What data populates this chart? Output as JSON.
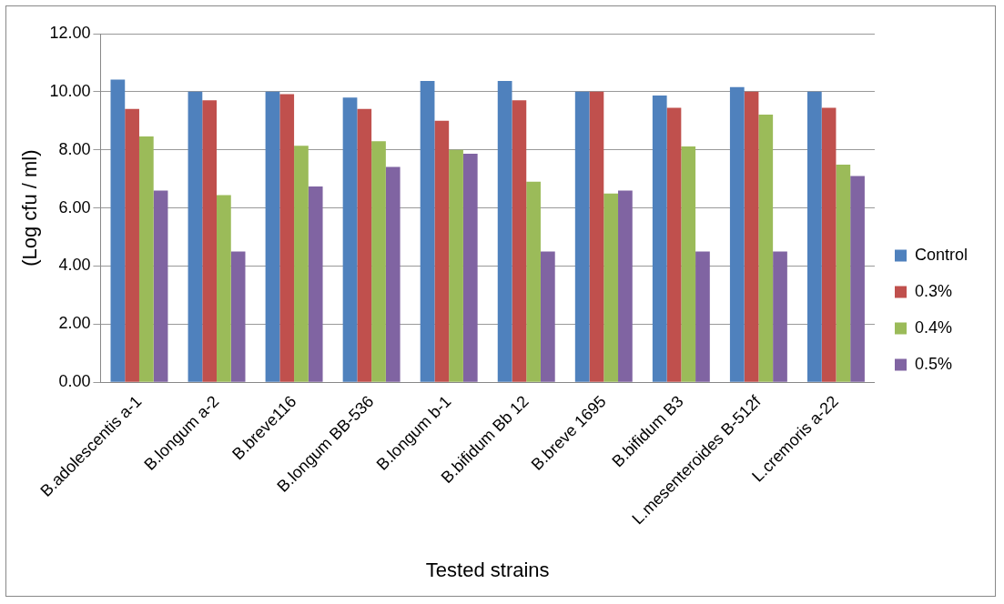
{
  "chart_data": {
    "type": "bar",
    "xlabel": "Tested strains",
    "ylabel": "(Log cfu / ml)",
    "categories": [
      "B.adolescentis a-1",
      "B.longum a-2",
      "B.breve116",
      "B.longum BB-536",
      "B.longum b-1",
      "B.bifidum Bb 12",
      "B.breve 1695",
      "B.bifidum B3",
      "L.mesenteroides B-512f",
      "L.cremoris a-22"
    ],
    "series": [
      {
        "name": "Control",
        "color": "#4f81bd",
        "values": [
          10.42,
          10.0,
          10.0,
          9.8,
          10.37,
          10.37,
          10.0,
          9.87,
          10.16,
          10.0
        ]
      },
      {
        "name": "0.3%",
        "color": "#c0504d",
        "values": [
          9.41,
          9.71,
          9.92,
          9.41,
          9.0,
          9.71,
          10.0,
          9.45,
          10.0,
          9.45
        ]
      },
      {
        "name": "0.4%",
        "color": "#9bbb59",
        "values": [
          8.46,
          6.44,
          8.14,
          8.3,
          8.0,
          6.9,
          6.5,
          8.12,
          9.21,
          7.49
        ]
      },
      {
        "name": "0.5%",
        "color": "#8064a2",
        "values": [
          6.6,
          4.5,
          6.74,
          7.41,
          7.87,
          4.5,
          6.6,
          4.5,
          4.5,
          7.1
        ]
      }
    ],
    "ylim": [
      0,
      12
    ],
    "yticks": [
      {
        "value": 0,
        "label": "0.00"
      },
      {
        "value": 2,
        "label": "2.00"
      },
      {
        "value": 4,
        "label": "4.00"
      },
      {
        "value": 6,
        "label": "6.00"
      },
      {
        "value": 8,
        "label": "8.00"
      },
      {
        "value": 10,
        "label": "10.00"
      },
      {
        "value": 12,
        "label": "12.00"
      }
    ],
    "grid": "y",
    "legend": "right"
  }
}
